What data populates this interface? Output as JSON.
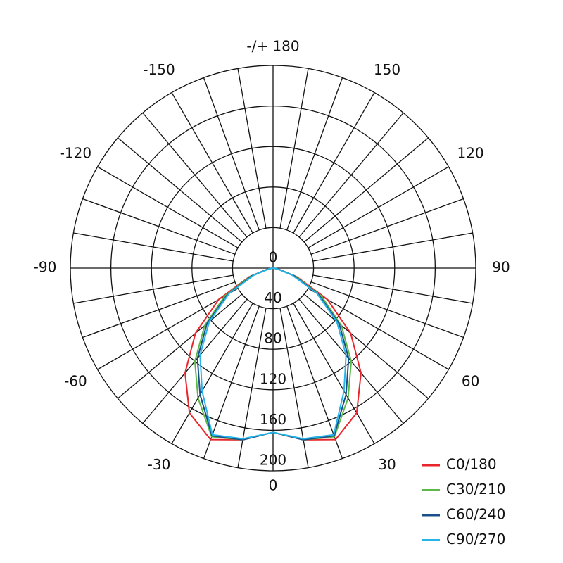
{
  "chart_data": {
    "type": "polar",
    "x": [
      -90,
      -80,
      -70,
      -60,
      -50,
      -40,
      -30,
      -20,
      -10,
      0,
      10,
      20,
      30,
      40,
      50,
      60,
      70,
      80,
      90
    ],
    "series": [
      {
        "name": "C0/180",
        "color": "#e8252a",
        "values": [
          0,
          5,
          25,
          62,
          100,
          135,
          165,
          180,
          172,
          162,
          172,
          180,
          165,
          135,
          100,
          62,
          25,
          5,
          0
        ]
      },
      {
        "name": "C30/210",
        "color": "#5cb947",
        "values": [
          0,
          5,
          24,
          55,
          88,
          120,
          148,
          177,
          172,
          162,
          172,
          177,
          148,
          120,
          88,
          55,
          24,
          5,
          0
        ]
      },
      {
        "name": "C60/240",
        "color": "#1a4f8c",
        "values": [
          0,
          5,
          22,
          52,
          85,
          116,
          144,
          176,
          172,
          162,
          172,
          176,
          144,
          116,
          85,
          52,
          22,
          5,
          0
        ]
      },
      {
        "name": "C90/270",
        "color": "#27b4e8",
        "values": [
          0,
          4,
          20,
          50,
          82,
          112,
          140,
          175,
          171,
          162,
          171,
          175,
          140,
          112,
          82,
          50,
          20,
          4,
          0
        ]
      }
    ],
    "xticks": [
      -150,
      -120,
      -90,
      -60,
      -30,
      0,
      30,
      60,
      90,
      120,
      150,
      {
        "value": 180,
        "label": "-/+ 180"
      }
    ],
    "ylim": [
      0,
      200
    ],
    "yticks": [
      0,
      40,
      80,
      120,
      160,
      200
    ],
    "legend": "bottom-right"
  }
}
